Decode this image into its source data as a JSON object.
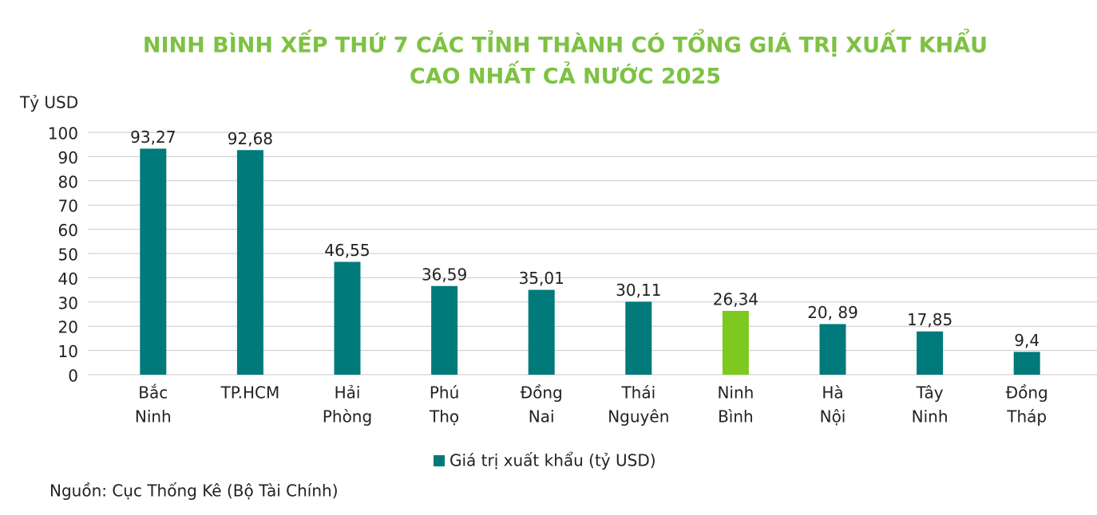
{
  "chart_data": {
    "type": "bar",
    "title": [
      "NINH BÌNH XẾP THỨ 7 CÁC TỈNH THÀNH CÓ TỔNG GIÁ TRỊ XUẤT KHẨU",
      "CAO NHẤT CẢ NƯỚC 2025"
    ],
    "y_label": "Tỷ USD",
    "source": "Nguồn: Cục Thống Kê (Bộ Tài Chính)",
    "categories": [
      [
        "Bắc",
        "Ninh"
      ],
      [
        "TP.HCM"
      ],
      [
        "Hải",
        "Phòng"
      ],
      [
        "Phú",
        "Thọ"
      ],
      [
        "Đồng",
        "Nai"
      ],
      [
        "Thái",
        "Nguyên"
      ],
      [
        "Ninh",
        "Bình"
      ],
      [
        "Hà",
        "Nội"
      ],
      [
        "Tây",
        "Ninh"
      ],
      [
        "Đồng",
        "Tháp"
      ]
    ],
    "series": [
      {
        "name": "Giá trị xuất khẩu (tỷ USD)",
        "color": "#007a7a",
        "values": [
          93.27,
          92.68,
          46.55,
          36.59,
          35.01,
          30.11,
          26.34,
          20.89,
          17.85,
          9.4
        ],
        "value_labels": [
          "93,27",
          "92,68",
          "46,55",
          "36,59",
          "35,01",
          "30,11",
          "26,34",
          "20, 89",
          "17,85",
          "9,4"
        ],
        "point_colors": [
          "#007a7a",
          "#007a7a",
          "#007a7a",
          "#007a7a",
          "#007a7a",
          "#007a7a",
          "#7dc91f",
          "#007a7a",
          "#007a7a",
          "#007a7a"
        ]
      }
    ],
    "ylim": [
      0,
      100
    ],
    "yticks": [
      0,
      10,
      20,
      30,
      40,
      50,
      60,
      70,
      80,
      90,
      100
    ],
    "grid": true,
    "legend": "bottom"
  }
}
